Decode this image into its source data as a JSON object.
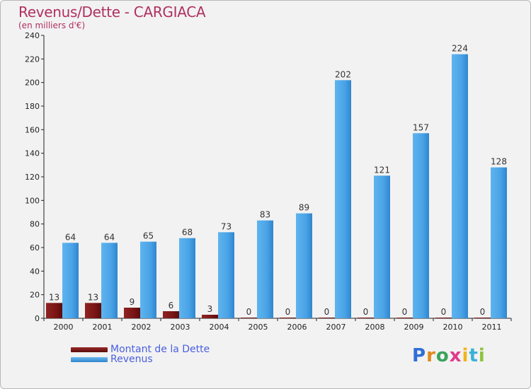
{
  "chart_data": {
    "type": "bar",
    "title": "Revenus/Dette - CARGIACA",
    "subtitle": "(en milliers d'€)",
    "categories": [
      "2000",
      "2001",
      "2002",
      "2003",
      "2004",
      "2005",
      "2006",
      "2007",
      "2008",
      "2009",
      "2010",
      "2011"
    ],
    "series": [
      {
        "name": "Montant de la Dette",
        "color": "#7a1515",
        "values": [
          13,
          13,
          9,
          6,
          3,
          0,
          0,
          0,
          0,
          0,
          0,
          0
        ]
      },
      {
        "name": "Revenus",
        "color": "#4aa3e6",
        "values": [
          64,
          64,
          65,
          68,
          73,
          83,
          89,
          202,
          121,
          157,
          224,
          128
        ]
      }
    ],
    "ylim": [
      0,
      240
    ],
    "yticks": [
      0,
      20,
      40,
      60,
      80,
      100,
      120,
      140,
      160,
      180,
      200,
      220,
      240
    ],
    "grid": false,
    "legend": "bottom-left"
  },
  "logo": {
    "letters": [
      "P",
      "r",
      "o",
      "x",
      "i",
      "t",
      "i"
    ],
    "colors": [
      "#2f6fd6",
      "#e28a1c",
      "#3aa35a",
      "#e03a8c",
      "#f0b51d",
      "#3ab0d8",
      "#8cc43c"
    ]
  }
}
